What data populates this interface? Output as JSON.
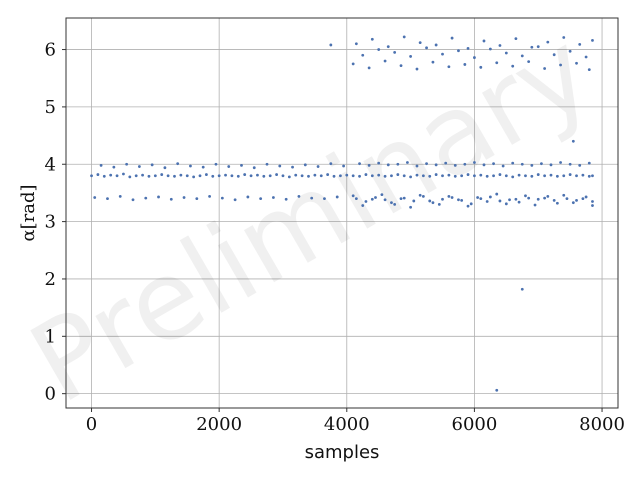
{
  "watermark": "Preliminary",
  "chart_data": {
    "type": "scatter",
    "title": "",
    "xlabel": "samples",
    "ylabel": "α[rad]",
    "xlim": [
      -400,
      8250
    ],
    "ylim": [
      -0.25,
      6.55
    ],
    "xticks": [
      0,
      2000,
      4000,
      6000,
      8000
    ],
    "xtick_labels": [
      "0",
      "2000",
      "4000",
      "6000",
      "8000"
    ],
    "yticks": [
      0,
      1,
      2,
      3,
      4,
      5,
      6
    ],
    "ytick_labels": [
      "0",
      "1",
      "2",
      "3",
      "4",
      "5",
      "6"
    ],
    "grid": true,
    "marker_color": "#4c72b0",
    "series": [
      {
        "x": [
          0,
          100,
          200,
          300,
          400,
          500,
          600,
          700,
          800,
          900,
          1000,
          1100,
          1200,
          1300,
          1400,
          1500,
          1600,
          1700,
          1800,
          1900,
          2000,
          2100,
          2200,
          2300,
          2400,
          2500,
          2600,
          2700,
          2800,
          2900,
          3000,
          3100,
          3200,
          3300,
          3400,
          3500,
          3600,
          3700,
          3800,
          3900,
          4000,
          4100,
          4200,
          4300,
          4400,
          4500,
          4600,
          4700,
          4800,
          4900,
          5000,
          5100,
          5200,
          5300,
          5400,
          5500,
          5600,
          5700,
          5800,
          5900,
          6000,
          6100,
          6200,
          6300,
          6400,
          6500,
          6600,
          6700,
          6800,
          6900,
          7000,
          7100,
          7200,
          7300,
          7400,
          7500,
          7600,
          7700,
          7800,
          7850,
          50,
          250,
          450,
          650,
          850,
          1050,
          1250,
          1450,
          1650,
          1850,
          2050,
          2250,
          2450,
          2650,
          2850,
          3050,
          3250,
          3450,
          3650,
          3850,
          150,
          350,
          550,
          750,
          950,
          1150,
          1350,
          1550,
          1750,
          1950,
          2150,
          2350,
          2550,
          2750,
          2950,
          3150,
          3350,
          3550,
          3750,
          3950,
          4150,
          4300,
          4450,
          4600,
          4750,
          4900,
          5050,
          5200,
          5350,
          5500,
          5650,
          5800,
          5950,
          6100,
          6250,
          6400,
          6550,
          6700,
          6850,
          7000,
          7150,
          7300,
          7450,
          7600,
          7750,
          7850,
          4100,
          4250,
          4400,
          4550,
          4700,
          4850,
          5000,
          5150,
          5300,
          5450,
          5600,
          5750,
          5900,
          6050,
          6200,
          6350,
          6500,
          6650,
          6800,
          6950,
          7100,
          7250,
          7400,
          7550,
          7700,
          7850,
          4200,
          4350,
          4500,
          4650,
          4800,
          4950,
          5100,
          5250,
          5400,
          5550,
          5700,
          5850,
          6000,
          6150,
          6300,
          6450,
          6600,
          6750,
          6900,
          7050,
          7200,
          7350,
          7500,
          7650,
          7800,
          4150,
          4400,
          4650,
          4900,
          5150,
          5400,
          5650,
          5900,
          6150,
          6400,
          6650,
          6900,
          7150,
          7400,
          7650,
          7850,
          4100,
          4350,
          4600,
          4850,
          5100,
          5350,
          5600,
          5850,
          6100,
          6350,
          6600,
          6850,
          7100,
          7350,
          7600,
          7800,
          4250,
          4500,
          4750,
          5000,
          5250,
          5500,
          5750,
          6000,
          6250,
          6500,
          6750,
          7000,
          7250,
          7500,
          7750,
          3750,
          7550,
          6750,
          6350
        ],
        "y": [
          3.8,
          3.82,
          3.79,
          3.81,
          3.8,
          3.83,
          3.78,
          3.8,
          3.81,
          3.79,
          3.8,
          3.82,
          3.8,
          3.79,
          3.81,
          3.8,
          3.78,
          3.8,
          3.82,
          3.79,
          3.8,
          3.81,
          3.8,
          3.79,
          3.82,
          3.8,
          3.81,
          3.79,
          3.8,
          3.82,
          3.8,
          3.78,
          3.81,
          3.8,
          3.79,
          3.81,
          3.8,
          3.82,
          3.79,
          3.8,
          3.81,
          3.8,
          3.79,
          3.82,
          3.8,
          3.81,
          3.79,
          3.8,
          3.82,
          3.8,
          3.78,
          3.81,
          3.8,
          3.79,
          3.82,
          3.8,
          3.81,
          3.79,
          3.8,
          3.82,
          3.8,
          3.81,
          3.79,
          3.8,
          3.82,
          3.8,
          3.78,
          3.81,
          3.8,
          3.79,
          3.82,
          3.8,
          3.81,
          3.79,
          3.8,
          3.82,
          3.8,
          3.81,
          3.79,
          3.8,
          3.42,
          3.4,
          3.44,
          3.38,
          3.41,
          3.43,
          3.39,
          3.42,
          3.4,
          3.44,
          3.41,
          3.38,
          3.43,
          3.4,
          3.42,
          3.39,
          3.44,
          3.41,
          3.4,
          3.43,
          3.98,
          3.95,
          4.0,
          3.96,
          3.99,
          3.94,
          4.01,
          3.97,
          3.95,
          4.0,
          3.96,
          3.98,
          3.94,
          4.0,
          3.97,
          3.95,
          3.99,
          3.96,
          4.01,
          3.97,
          3.4,
          3.35,
          3.42,
          3.38,
          3.3,
          3.41,
          3.36,
          3.44,
          3.33,
          3.39,
          3.42,
          3.37,
          3.31,
          3.4,
          3.43,
          3.36,
          3.38,
          3.34,
          3.41,
          3.39,
          3.44,
          3.32,
          3.4,
          3.37,
          3.43,
          3.35,
          3.45,
          3.28,
          3.39,
          3.47,
          3.33,
          3.4,
          3.25,
          3.46,
          3.36,
          3.3,
          3.44,
          3.38,
          3.27,
          3.42,
          3.35,
          3.48,
          3.31,
          3.39,
          3.45,
          3.29,
          3.41,
          3.37,
          3.46,
          3.33,
          3.4,
          3.28,
          4.01,
          3.98,
          4.02,
          3.99,
          4.0,
          4.03,
          3.97,
          4.01,
          3.99,
          4.02,
          3.98,
          4.0,
          4.03,
          3.99,
          4.01,
          3.97,
          4.02,
          4.0,
          3.98,
          4.01,
          3.99,
          4.03,
          4.0,
          3.98,
          4.02,
          6.1,
          6.18,
          6.05,
          6.22,
          6.12,
          6.08,
          6.2,
          6.02,
          6.15,
          6.07,
          6.19,
          6.04,
          6.13,
          6.21,
          6.09,
          6.16,
          5.75,
          5.68,
          5.8,
          5.72,
          5.66,
          5.78,
          5.7,
          5.74,
          5.69,
          5.77,
          5.71,
          5.79,
          5.67,
          5.73,
          5.76,
          5.65,
          5.9,
          6.0,
          5.95,
          5.88,
          6.03,
          5.92,
          5.98,
          5.86,
          6.01,
          5.94,
          5.89,
          6.05,
          5.91,
          5.97,
          5.87,
          6.08,
          4.4,
          1.82,
          0.06
        ]
      }
    ]
  }
}
